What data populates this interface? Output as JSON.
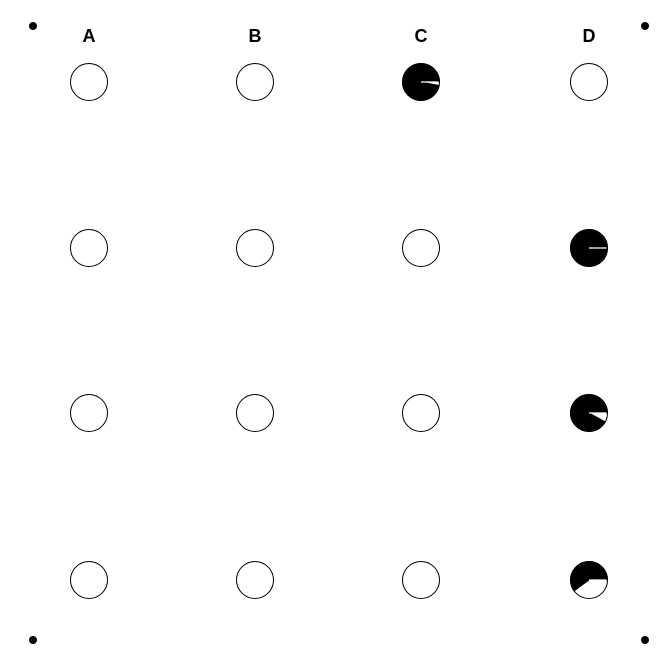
{
  "columns": [
    "A",
    "B",
    "C",
    "D"
  ],
  "rows": 4,
  "ink_color": "#000000",
  "paper_color": "#ffffff",
  "cells": [
    {
      "column": "A",
      "row": 1,
      "filled_fraction": 0
    },
    {
      "column": "B",
      "row": 1,
      "filled_fraction": 0
    },
    {
      "column": "C",
      "row": 1,
      "filled_fraction": 0.97
    },
    {
      "column": "D",
      "row": 1,
      "filled_fraction": 0
    },
    {
      "column": "A",
      "row": 2,
      "filled_fraction": 0
    },
    {
      "column": "B",
      "row": 2,
      "filled_fraction": 0
    },
    {
      "column": "C",
      "row": 2,
      "filled_fraction": 0
    },
    {
      "column": "D",
      "row": 2,
      "filled_fraction": 0.995
    },
    {
      "column": "A",
      "row": 3,
      "filled_fraction": 0
    },
    {
      "column": "B",
      "row": 3,
      "filled_fraction": 0
    },
    {
      "column": "C",
      "row": 3,
      "filled_fraction": 0
    },
    {
      "column": "D",
      "row": 3,
      "filled_fraction": 0.92
    },
    {
      "column": "A",
      "row": 4,
      "filled_fraction": 0
    },
    {
      "column": "B",
      "row": 4,
      "filled_fraction": 0
    },
    {
      "column": "C",
      "row": 4,
      "filled_fraction": 0
    },
    {
      "column": "D",
      "row": 4,
      "filled_fraction": 0.6
    }
  ]
}
